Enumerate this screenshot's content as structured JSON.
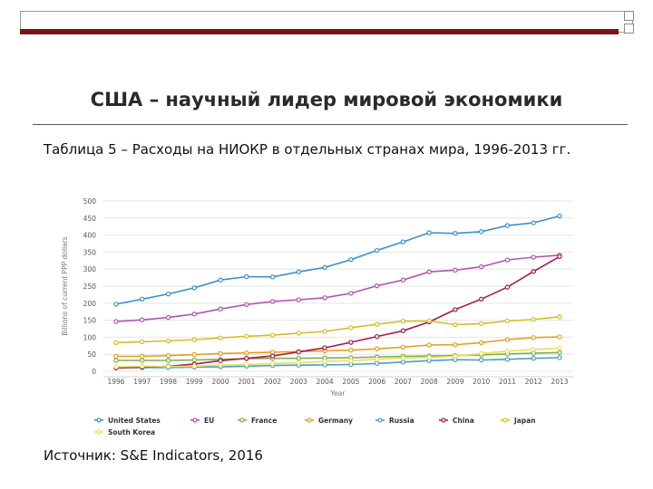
{
  "slide": {
    "title": "США – научный лидер мировой экономики",
    "subtitle": "Таблица 5 – Расходы на НИОКР в отдельных странах мира, 1996-2013 гг.",
    "source": "Источник: S&E Indicators, 2016"
  },
  "chart_data": {
    "type": "line",
    "ylabel": "Billions of current PPP dollars",
    "xlabel": "Year",
    "ylim": [
      0,
      500
    ],
    "yticks": [
      0,
      50,
      100,
      150,
      200,
      250,
      300,
      350,
      400,
      450,
      500
    ],
    "grid": true,
    "legend_position": "bottom",
    "x": [
      "1996",
      "1997",
      "1998",
      "1999",
      "2000",
      "2001",
      "2002",
      "2003",
      "2004",
      "2005",
      "2006",
      "2007",
      "2008",
      "2009",
      "2010",
      "2011",
      "2012",
      "2013"
    ],
    "series": [
      {
        "name": "United States",
        "color": "#3d8fcc",
        "values": [
          197,
          212,
          227,
          245,
          268,
          278,
          277,
          292,
          305,
          328,
          355,
          380,
          407,
          405,
          410,
          428,
          436,
          456
        ]
      },
      {
        "name": "EU",
        "color": "#b452b4",
        "values": [
          146,
          151,
          158,
          168,
          183,
          196,
          205,
          210,
          216,
          229,
          251,
          268,
          292,
          297,
          307,
          327,
          335,
          341
        ]
      },
      {
        "name": "France",
        "color": "#7fae4a",
        "values": [
          32,
          32,
          32,
          33,
          35,
          37,
          38,
          38,
          39,
          40,
          42,
          44,
          45,
          46,
          48,
          51,
          53,
          55
        ]
      },
      {
        "name": "Germany",
        "color": "#e3a020",
        "values": [
          44,
          44,
          46,
          49,
          52,
          54,
          56,
          58,
          60,
          62,
          66,
          71,
          77,
          78,
          84,
          93,
          99,
          101
        ]
      },
      {
        "name": "Russia",
        "color": "#4aa0c4",
        "values": [
          10,
          11,
          11,
          12,
          13,
          15,
          17,
          18,
          19,
          20,
          23,
          27,
          31,
          34,
          33,
          35,
          38,
          40
        ]
      },
      {
        "name": "China",
        "color": "#a51b4a",
        "values": [
          10,
          12,
          15,
          21,
          31,
          38,
          45,
          57,
          69,
          85,
          102,
          119,
          145,
          181,
          212,
          247,
          293,
          337
        ]
      },
      {
        "name": "Japan",
        "color": "#d4be2a",
        "values": [
          84,
          87,
          89,
          93,
          98,
          103,
          106,
          112,
          117,
          128,
          138,
          147,
          148,
          137,
          140,
          148,
          152,
          160
        ]
      },
      {
        "name": "South Korea",
        "color": "#e8e060",
        "values": [
          13,
          15,
          14,
          15,
          18,
          20,
          23,
          25,
          29,
          31,
          35,
          39,
          41,
          44,
          52,
          59,
          64,
          68
        ]
      }
    ]
  }
}
